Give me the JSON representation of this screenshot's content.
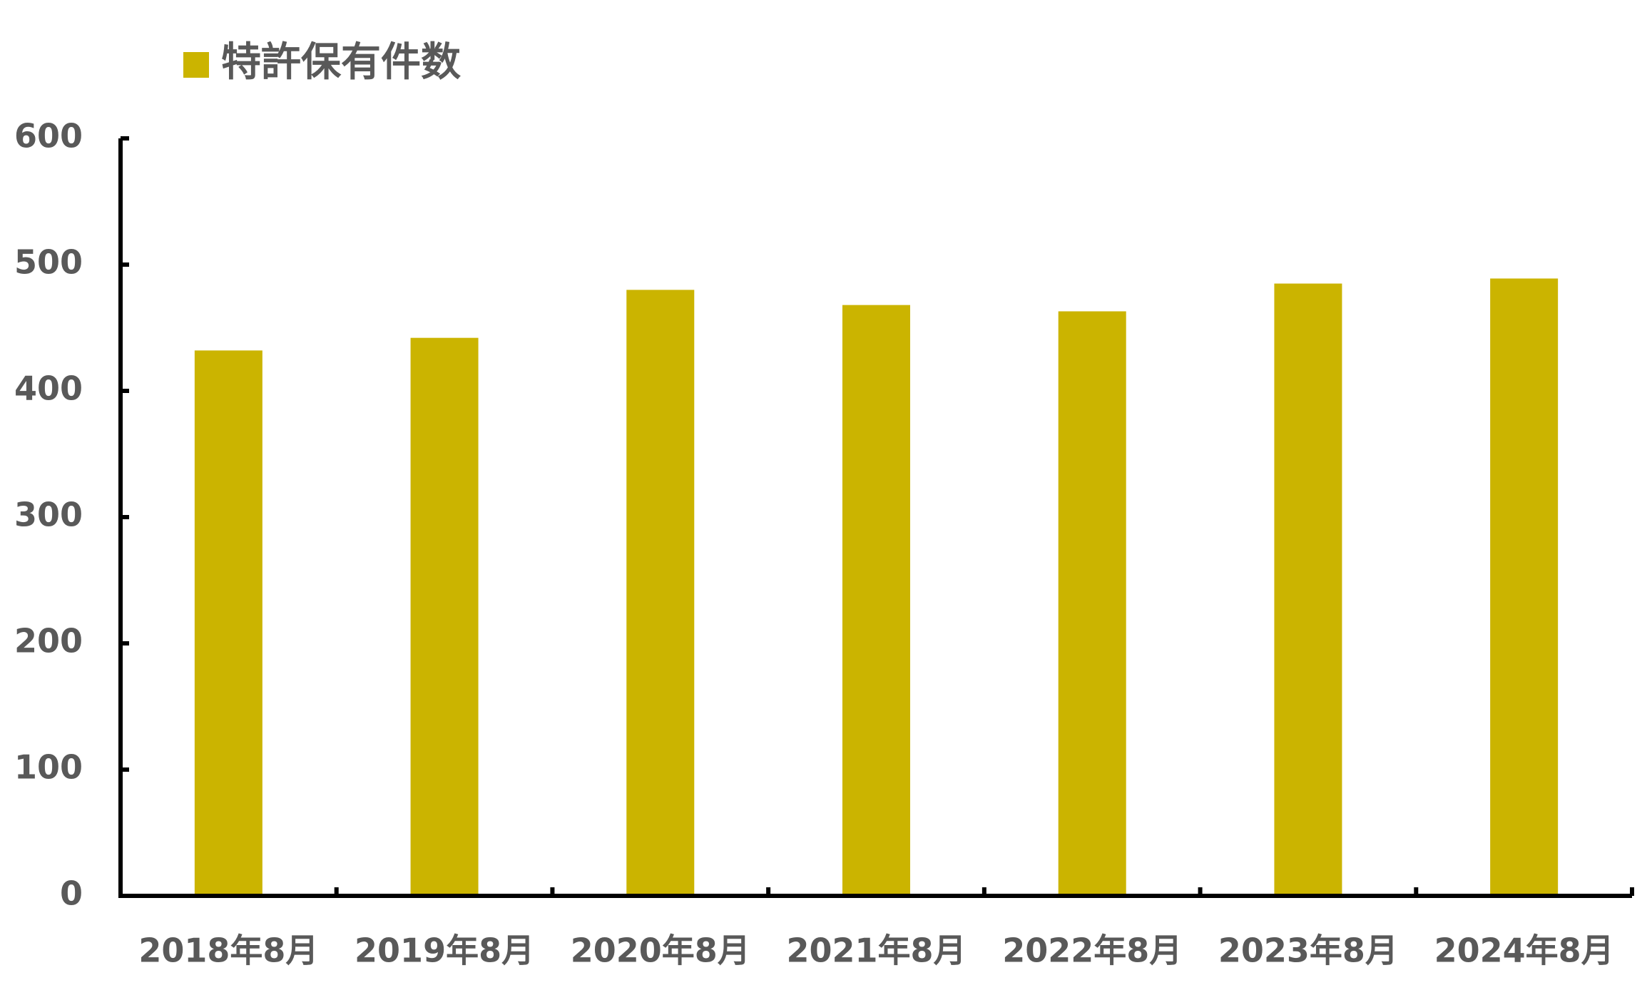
{
  "chart_data": {
    "type": "bar",
    "categories": [
      "2018年8月",
      "2019年8月",
      "2020年8月",
      "2021年8月",
      "2022年8月",
      "2023年8月",
      "2024年8月"
    ],
    "series": [
      {
        "name": "特許保有件数",
        "color": "#cbb400",
        "values": [
          432,
          442,
          480,
          468,
          463,
          485,
          489
        ]
      }
    ],
    "ylim": [
      0,
      600
    ],
    "yticks": [
      0,
      100,
      200,
      300,
      400,
      500,
      600
    ],
    "grid": false,
    "legend": "top-left"
  }
}
